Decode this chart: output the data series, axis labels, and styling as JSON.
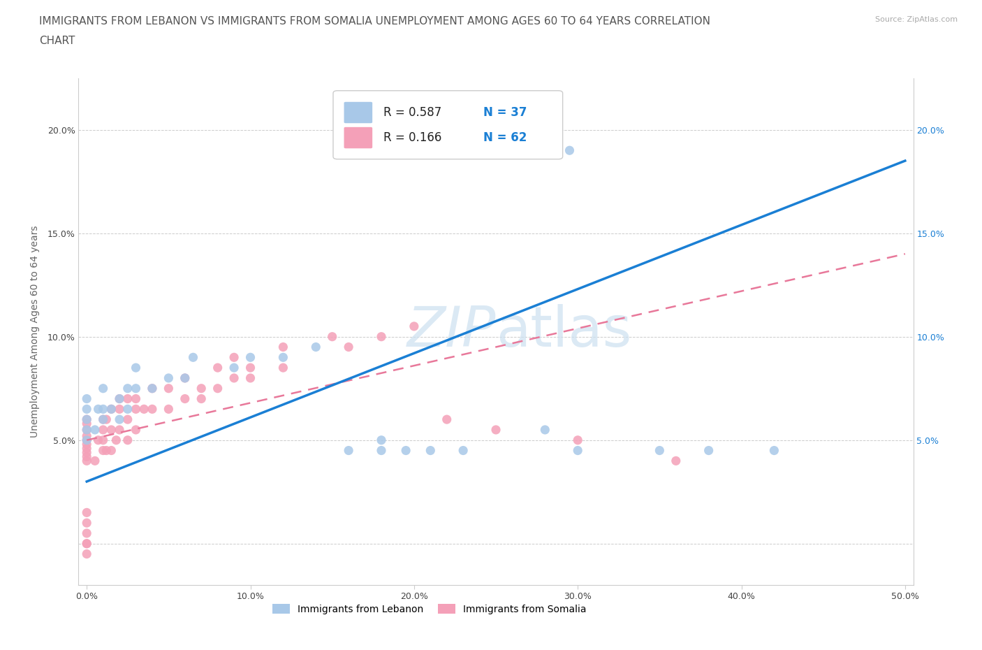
{
  "title_line1": "IMMIGRANTS FROM LEBANON VS IMMIGRANTS FROM SOMALIA UNEMPLOYMENT AMONG AGES 60 TO 64 YEARS CORRELATION",
  "title_line2": "CHART",
  "source_text": "Source: ZipAtlas.com",
  "ylabel": "Unemployment Among Ages 60 to 64 years",
  "xlim": [
    -0.005,
    0.505
  ],
  "ylim": [
    -0.02,
    0.225
  ],
  "xticks": [
    0.0,
    0.1,
    0.2,
    0.3,
    0.4,
    0.5
  ],
  "yticks": [
    0.0,
    0.05,
    0.1,
    0.15,
    0.2
  ],
  "xticklabels": [
    "0.0%",
    "10.0%",
    "20.0%",
    "30.0%",
    "40.0%",
    "50.0%"
  ],
  "yticklabels_left": [
    "",
    "5.0%",
    "10.0%",
    "15.0%",
    "20.0%"
  ],
  "yticklabels_right": [
    "",
    "5.0%",
    "10.0%",
    "15.0%",
    "20.0%"
  ],
  "legend_R1": "R = 0.587",
  "legend_N1": "N = 37",
  "legend_R2": "R = 0.166",
  "legend_N2": "N = 62",
  "color_lebanon": "#a8c8e8",
  "color_somalia": "#f4a0b8",
  "trend_color_lebanon": "#1a7fd4",
  "trend_color_somalia": "#e8789a",
  "watermark_color": "#cce0f0",
  "lebanon_x": [
    0.0,
    0.0,
    0.0,
    0.0,
    0.0,
    0.005,
    0.007,
    0.01,
    0.01,
    0.01,
    0.015,
    0.02,
    0.02,
    0.025,
    0.025,
    0.03,
    0.03,
    0.04,
    0.05,
    0.06,
    0.065,
    0.09,
    0.1,
    0.12,
    0.14,
    0.16,
    0.18,
    0.195,
    0.21,
    0.23,
    0.28,
    0.295,
    0.35,
    0.38,
    0.42,
    0.3,
    0.18
  ],
  "lebanon_y": [
    0.05,
    0.055,
    0.06,
    0.065,
    0.07,
    0.055,
    0.065,
    0.06,
    0.065,
    0.075,
    0.065,
    0.06,
    0.07,
    0.065,
    0.075,
    0.075,
    0.085,
    0.075,
    0.08,
    0.08,
    0.09,
    0.085,
    0.09,
    0.09,
    0.095,
    0.045,
    0.05,
    0.045,
    0.045,
    0.045,
    0.055,
    0.19,
    0.045,
    0.045,
    0.045,
    0.045,
    0.045
  ],
  "somalia_x": [
    0.0,
    0.0,
    0.0,
    0.0,
    0.0,
    0.0,
    0.0,
    0.0,
    0.0,
    0.0,
    0.0,
    0.0,
    0.0,
    0.0,
    0.0,
    0.0,
    0.005,
    0.007,
    0.01,
    0.01,
    0.01,
    0.01,
    0.012,
    0.012,
    0.015,
    0.015,
    0.015,
    0.018,
    0.02,
    0.02,
    0.02,
    0.025,
    0.025,
    0.025,
    0.03,
    0.03,
    0.03,
    0.035,
    0.04,
    0.04,
    0.05,
    0.05,
    0.06,
    0.06,
    0.07,
    0.07,
    0.08,
    0.08,
    0.09,
    0.09,
    0.1,
    0.1,
    0.12,
    0.12,
    0.15,
    0.16,
    0.18,
    0.2,
    0.22,
    0.25,
    0.3,
    0.36
  ],
  "somalia_y": [
    0.04,
    0.042,
    0.044,
    0.046,
    0.048,
    0.05,
    0.052,
    0.055,
    0.058,
    0.06,
    0.0,
    0.0,
    0.01,
    0.015,
    -0.005,
    0.005,
    0.04,
    0.05,
    0.045,
    0.05,
    0.055,
    0.06,
    0.045,
    0.06,
    0.045,
    0.055,
    0.065,
    0.05,
    0.055,
    0.065,
    0.07,
    0.05,
    0.06,
    0.07,
    0.055,
    0.065,
    0.07,
    0.065,
    0.065,
    0.075,
    0.065,
    0.075,
    0.07,
    0.08,
    0.07,
    0.075,
    0.075,
    0.085,
    0.08,
    0.09,
    0.08,
    0.085,
    0.085,
    0.095,
    0.1,
    0.095,
    0.1,
    0.105,
    0.06,
    0.055,
    0.05,
    0.04
  ],
  "title_fontsize": 11,
  "axis_fontsize": 10,
  "tick_fontsize": 9
}
